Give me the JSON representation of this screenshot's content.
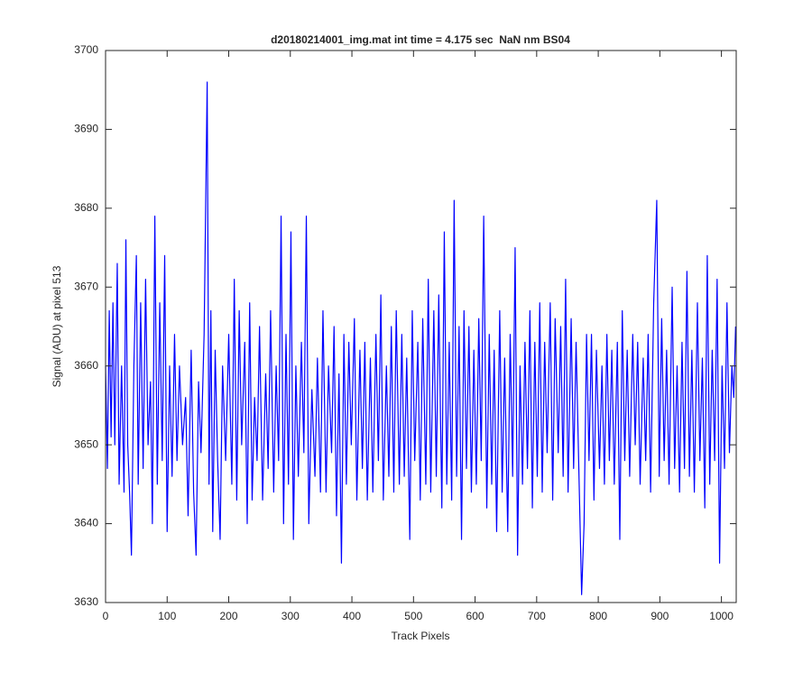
{
  "chart_data": {
    "type": "line",
    "title": "d20180214001_img.mat int time = 4.175 sec  NaN nm BS04",
    "xlabel": "Track Pixels",
    "ylabel": "Signal (ADU) at pixel 513",
    "xlim": [
      0,
      1024
    ],
    "ylim": [
      3630,
      3700
    ],
    "xticks": [
      0,
      100,
      200,
      300,
      400,
      500,
      600,
      700,
      800,
      900,
      1000
    ],
    "yticks": [
      3630,
      3640,
      3650,
      3660,
      3670,
      3680,
      3690,
      3700
    ],
    "grid": false,
    "series": [
      {
        "name": "signal",
        "color": "#0000ff",
        "x": [
          0,
          3,
          6,
          9,
          12,
          15,
          19,
          22,
          26,
          30,
          33,
          36,
          39,
          42,
          46,
          50,
          53,
          57,
          61,
          65,
          69,
          73,
          76,
          80,
          84,
          88,
          92,
          96,
          100,
          104,
          108,
          112,
          116,
          120,
          125,
          130,
          134,
          139,
          143,
          147,
          151,
          155,
          160,
          165,
          168,
          171,
          174,
          178,
          182,
          186,
          190,
          195,
          200,
          205,
          209,
          213,
          217,
          221,
          226,
          230,
          234,
          238,
          242,
          246,
          250,
          255,
          260,
          264,
          268,
          273,
          277,
          281,
          285,
          289,
          293,
          297,
          301,
          305,
          309,
          313,
          318,
          322,
          326,
          330,
          335,
          340,
          344,
          349,
          353,
          358,
          362,
          367,
          371,
          375,
          379,
          383,
          387,
          391,
          395,
          399,
          404,
          408,
          413,
          417,
          421,
          425,
          430,
          434,
          439,
          443,
          447,
          451,
          456,
          460,
          464,
          468,
          472,
          477,
          481,
          485,
          489,
          494,
          498,
          502,
          507,
          511,
          515,
          520,
          524,
          528,
          533,
          537,
          541,
          546,
          550,
          554,
          558,
          562,
          566,
          570,
          574,
          578,
          582,
          586,
          590,
          594,
          598,
          602,
          606,
          610,
          614,
          619,
          623,
          627,
          631,
          635,
          640,
          644,
          648,
          653,
          657,
          661,
          665,
          669,
          673,
          677,
          681,
          685,
          689,
          693,
          697,
          701,
          705,
          709,
          713,
          717,
          722,
          726,
          730,
          735,
          739,
          743,
          747,
          751,
          756,
          760,
          764,
          769,
          773,
          777,
          781,
          785,
          789,
          793,
          797,
          802,
          806,
          810,
          814,
          818,
          822,
          826,
          831,
          835,
          839,
          843,
          847,
          851,
          856,
          860,
          864,
          868,
          873,
          877,
          881,
          885,
          890,
          895,
          899,
          903,
          907,
          911,
          915,
          920,
          924,
          928,
          932,
          936,
          940,
          944,
          948,
          952,
          956,
          961,
          965,
          969,
          973,
          977,
          981,
          985,
          989,
          993,
          997,
          1001,
          1005,
          1009,
          1013,
          1017,
          1020,
          1023
        ],
        "values": [
          3660,
          3647,
          3667,
          3651,
          3668,
          3650,
          3673,
          3645,
          3660,
          3644,
          3676,
          3650,
          3644,
          3636,
          3660,
          3674,
          3645,
          3668,
          3647,
          3671,
          3650,
          3658,
          3640,
          3679,
          3645,
          3668,
          3648,
          3674,
          3639,
          3660,
          3646,
          3664,
          3648,
          3660,
          3650,
          3656,
          3641,
          3662,
          3644,
          3636,
          3658,
          3649,
          3664,
          3696,
          3645,
          3667,
          3639,
          3662,
          3648,
          3638,
          3660,
          3648,
          3664,
          3645,
          3671,
          3643,
          3667,
          3650,
          3663,
          3640,
          3668,
          3643,
          3656,
          3648,
          3665,
          3643,
          3659,
          3647,
          3667,
          3644,
          3660,
          3648,
          3679,
          3640,
          3664,
          3645,
          3677,
          3638,
          3660,
          3646,
          3663,
          3649,
          3679,
          3640,
          3657,
          3646,
          3661,
          3644,
          3667,
          3644,
          3660,
          3649,
          3665,
          3641,
          3659,
          3635,
          3664,
          3645,
          3663,
          3650,
          3666,
          3643,
          3662,
          3647,
          3663,
          3643,
          3661,
          3644,
          3664,
          3648,
          3669,
          3643,
          3660,
          3646,
          3665,
          3644,
          3667,
          3645,
          3664,
          3646,
          3661,
          3638,
          3667,
          3648,
          3663,
          3643,
          3666,
          3645,
          3671,
          3644,
          3667,
          3646,
          3669,
          3642,
          3677,
          3645,
          3663,
          3643,
          3681,
          3646,
          3665,
          3638,
          3667,
          3647,
          3665,
          3644,
          3662,
          3645,
          3666,
          3648,
          3679,
          3642,
          3664,
          3645,
          3662,
          3639,
          3667,
          3644,
          3661,
          3639,
          3664,
          3646,
          3675,
          3636,
          3660,
          3645,
          3663,
          3647,
          3667,
          3642,
          3663,
          3646,
          3668,
          3644,
          3663,
          3649,
          3668,
          3643,
          3666,
          3649,
          3665,
          3646,
          3671,
          3644,
          3666,
          3647,
          3663,
          3645,
          3631,
          3640,
          3664,
          3648,
          3664,
          3643,
          3662,
          3647,
          3660,
          3645,
          3664,
          3648,
          3662,
          3645,
          3663,
          3638,
          3667,
          3648,
          3662,
          3646,
          3664,
          3650,
          3663,
          3645,
          3661,
          3648,
          3664,
          3644,
          3668,
          3681,
          3646,
          3666,
          3648,
          3662,
          3645,
          3670,
          3647,
          3660,
          3644,
          3663,
          3647,
          3672,
          3646,
          3662,
          3644,
          3668,
          3648,
          3661,
          3642,
          3674,
          3645,
          3662,
          3648,
          3671,
          3635,
          3660,
          3647,
          3668,
          3649,
          3660,
          3656,
          3665
        ]
      }
    ]
  }
}
